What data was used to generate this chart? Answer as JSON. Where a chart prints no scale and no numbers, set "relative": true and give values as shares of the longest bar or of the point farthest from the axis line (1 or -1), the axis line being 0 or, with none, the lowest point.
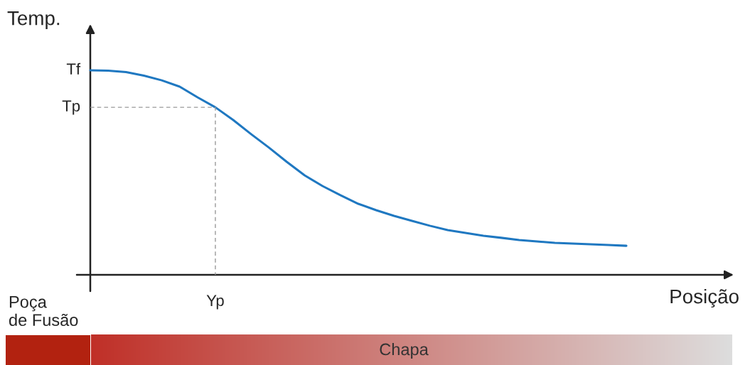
{
  "chart_data": {
    "type": "line",
    "xlabel": "Posição",
    "ylabel": "Temp.",
    "relative": true,
    "categories": [
      null,
      null,
      null,
      null,
      null,
      null,
      null,
      null,
      null,
      null,
      null,
      null,
      null,
      null,
      null,
      null,
      null,
      null,
      null,
      null,
      null,
      null,
      null,
      null,
      null,
      null,
      null,
      null,
      null,
      null,
      null
    ],
    "series": [
      {
        "color": "#1f78c1",
        "values": [
          1.0,
          0.998,
          0.991,
          0.974,
          0.951,
          0.92,
          0.868,
          0.819,
          0.757,
          0.688,
          0.622,
          0.552,
          0.486,
          0.434,
          0.389,
          0.347,
          0.316,
          0.288,
          0.264,
          0.24,
          0.219,
          0.205,
          0.191,
          0.181,
          0.17,
          0.163,
          0.156,
          0.153,
          0.149,
          0.146,
          0.142
        ]
      }
    ],
    "ref_lines": [
      {
        "axis": "y",
        "value": 0.819,
        "label": "Tp",
        "line_style": "dashed",
        "color": "#999999"
      }
    ],
    "annotations": [
      "Tf",
      "Yp",
      "Poça\nde Fusão",
      "Chapa"
    ]
  }
}
